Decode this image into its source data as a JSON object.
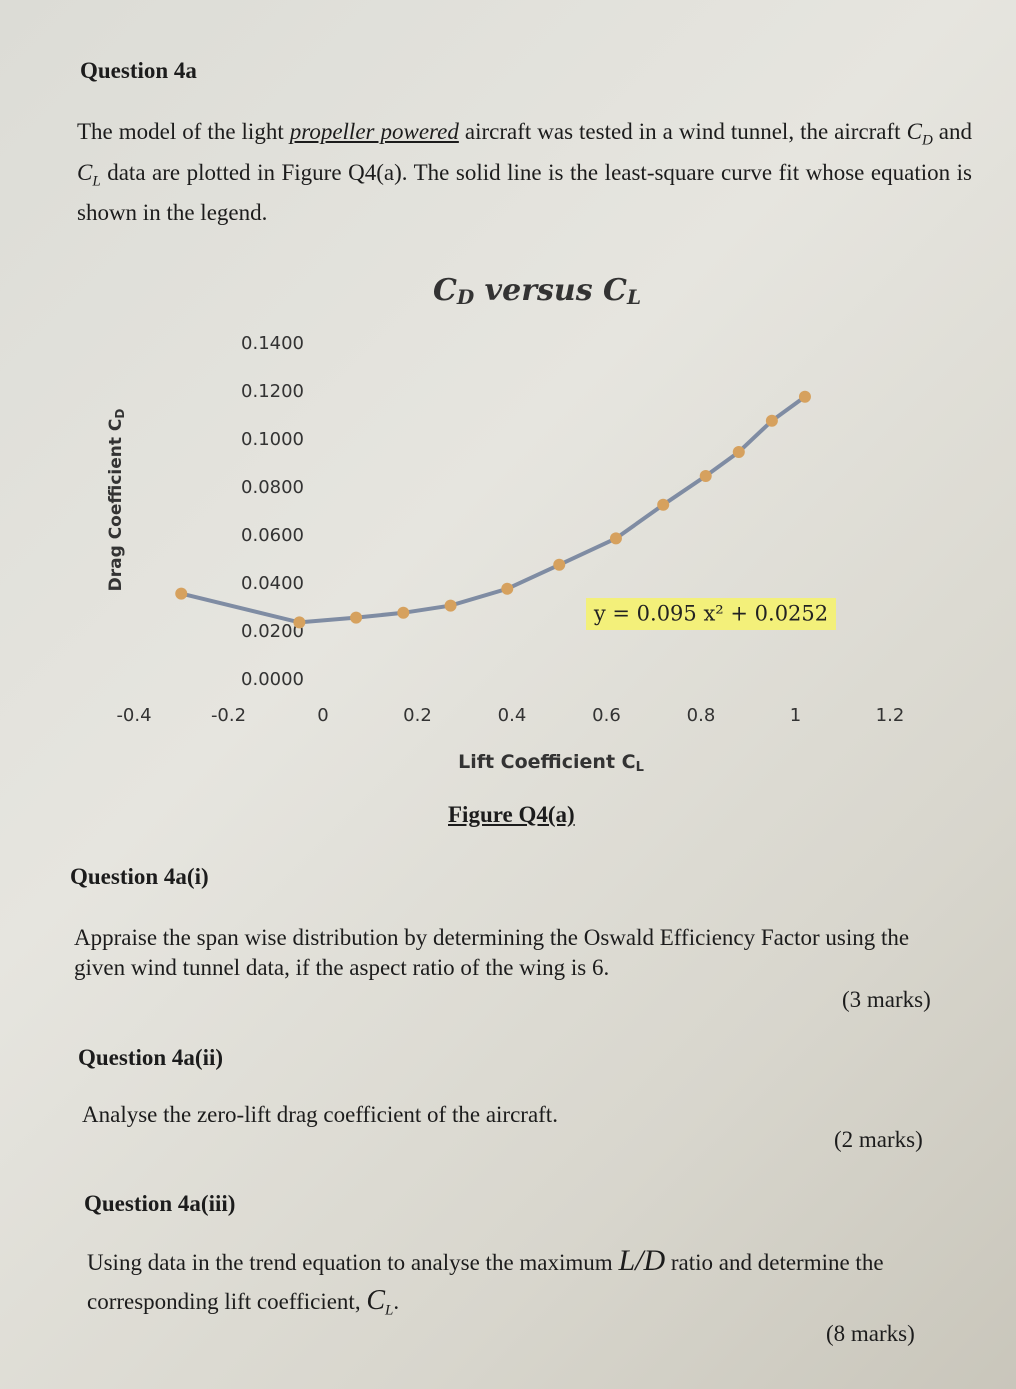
{
  "heading": "Question 4a",
  "intro": [
    "The model of the light ",
    "propeller powered",
    " aircraft was tested in a wind tunnel, the aircraft ",
    "C",
    "D",
    " and ",
    "C",
    "L",
    " data are plotted in Figure Q4(a). The solid line is the least-square curve fit whose equation is shown in the legend."
  ],
  "chart_data": {
    "type": "line",
    "title": [
      "C",
      "D",
      " versus ",
      "C",
      "L"
    ],
    "xlabel": [
      "Lift Coefficient C",
      "L"
    ],
    "ylabel": [
      "Drag Coefficient C",
      "D"
    ],
    "x": [
      -0.3,
      -0.05,
      0.07,
      0.17,
      0.27,
      0.39,
      0.5,
      0.62,
      0.72,
      0.81,
      0.88,
      0.95,
      1.02
    ],
    "series": [
      {
        "name": "y = 0.095 x² + 0.0252",
        "color": "#7f8ca3",
        "marker_color": "#d6a15e",
        "values": [
          0.036,
          0.024,
          0.026,
          0.028,
          0.031,
          0.038,
          0.048,
          0.059,
          0.073,
          0.085,
          0.095,
          0.108,
          0.118
        ]
      }
    ],
    "xlim": [
      -0.4,
      1.2
    ],
    "xticks": [
      -0.4,
      -0.2,
      0,
      0.2,
      0.4,
      0.6,
      0.8,
      1,
      1.2
    ],
    "ylim": [
      0,
      0.14
    ],
    "yticks": [
      {
        "value": 0,
        "label": "0.0000"
      },
      {
        "value": 0.02,
        "label": "0.0200"
      },
      {
        "value": 0.04,
        "label": "0.0400"
      },
      {
        "value": 0.06,
        "label": "0.0600"
      },
      {
        "value": 0.08,
        "label": "0.0800"
      },
      {
        "value": 0.1,
        "label": "0.1000"
      },
      {
        "value": 0.12,
        "label": "0.1200"
      },
      {
        "value": 0.14,
        "label": "0.1400"
      }
    ],
    "grid": false
  },
  "figure_caption": "Figure Q4(a)",
  "parts": [
    {
      "title": "Question 4a(i)",
      "text": [
        "Appraise the span wise distribution by determining the Oswald Efficiency Factor using the given wind tunnel data, if the aspect ratio of the wing is 6."
      ],
      "marks": "(3 marks)"
    },
    {
      "title": "Question 4a(ii)",
      "text": [
        "Analyse the zero-lift drag coefficient of the aircraft."
      ],
      "marks": "(2 marks)"
    },
    {
      "title": "Question 4a(iii)",
      "text": [
        "Using data in the trend equation to analyse the maximum ",
        "L/D",
        " ratio and determine the",
        "corresponding lift coefficient, ",
        "C",
        "L",
        "."
      ],
      "marks": "(8 marks)"
    }
  ]
}
